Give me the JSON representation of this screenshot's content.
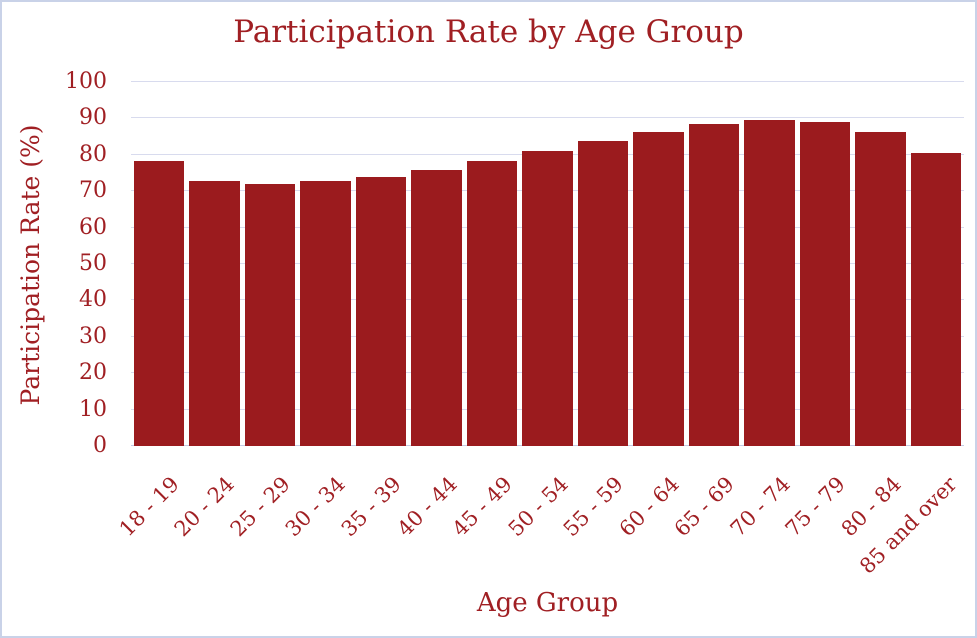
{
  "chart_data": {
    "type": "bar",
    "title": "Participation Rate by Age Group",
    "xlabel": "Age Group",
    "ylabel": "Participation Rate (%)",
    "categories": [
      "18 - 19",
      "20 - 24",
      "25 - 29",
      "30 - 34",
      "35 - 39",
      "40 - 44",
      "45 - 49",
      "50 - 54",
      "55 - 59",
      "60 - 64",
      "65 - 69",
      "70 - 74",
      "75 - 79",
      "80 - 84",
      "85 and over"
    ],
    "values": [
      78.2,
      72.7,
      72.1,
      72.8,
      73.9,
      75.7,
      78.4,
      81.0,
      83.8,
      86.4,
      88.6,
      89.7,
      88.9,
      86.4,
      80.5
    ],
    "ylim": [
      0,
      100
    ],
    "yticks": [
      0,
      10,
      20,
      30,
      40,
      50,
      60,
      70,
      80,
      90,
      100
    ],
    "grid": true,
    "legend": false,
    "colors": {
      "bar": "#9b1b1e",
      "text": "#a01f23",
      "gridline": "#d8dbee",
      "axis_line": "#c6cce4",
      "frame_border": "#c9d2e8",
      "background": "#ffffff"
    }
  }
}
